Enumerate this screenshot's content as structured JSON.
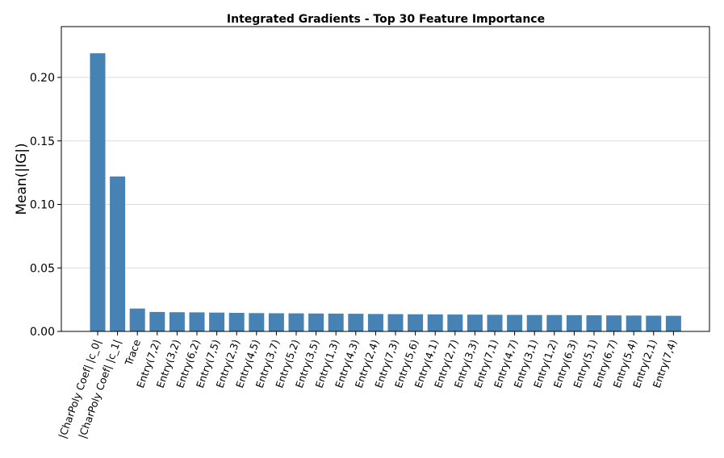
{
  "chart_data": {
    "type": "bar",
    "title": "Integrated Gradients - Top 30 Feature Importance",
    "xlabel": "",
    "ylabel": "Mean(|IG|)",
    "ylim": [
      0,
      0.24
    ],
    "yticks": [
      "0.00",
      "0.05",
      "0.10",
      "0.15",
      "0.20"
    ],
    "ytick_values": [
      0,
      0.05,
      0.1,
      0.15,
      0.2
    ],
    "grid": "y",
    "bar_color": "#4682b4",
    "categories": [
      "|CharPoly Coef| |c_0|",
      "|CharPoly Coef| |c_1|",
      "Trace",
      "Entry(7,2)",
      "Entry(3,2)",
      "Entry(6,2)",
      "Entry(7,5)",
      "Entry(2,3)",
      "Entry(4,5)",
      "Entry(3,7)",
      "Entry(5,2)",
      "Entry(3,5)",
      "Entry(1,3)",
      "Entry(4,3)",
      "Entry(2,4)",
      "Entry(7,3)",
      "Entry(5,6)",
      "Entry(4,1)",
      "Entry(2,7)",
      "Entry(3,3)",
      "Entry(7,1)",
      "Entry(4,7)",
      "Entry(3,1)",
      "Entry(1,2)",
      "Entry(6,3)",
      "Entry(5,1)",
      "Entry(6,7)",
      "Entry(5,4)",
      "Entry(2,1)",
      "Entry(7,4)"
    ],
    "values": [
      0.219,
      0.122,
      0.018,
      0.0153,
      0.0151,
      0.015,
      0.0148,
      0.0146,
      0.0144,
      0.0143,
      0.0142,
      0.0141,
      0.014,
      0.0139,
      0.0137,
      0.0136,
      0.0135,
      0.0134,
      0.0133,
      0.0132,
      0.0131,
      0.013,
      0.0129,
      0.0129,
      0.0128,
      0.0127,
      0.0126,
      0.0125,
      0.0124,
      0.0123
    ]
  }
}
